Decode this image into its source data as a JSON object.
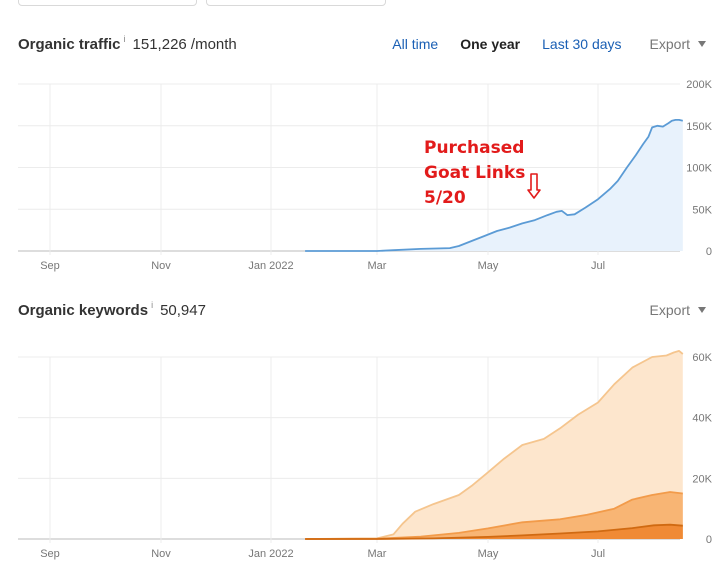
{
  "traffic": {
    "title": "Organic traffic",
    "info": "i",
    "value": "151,226 /month",
    "tabs": [
      {
        "label": "All time",
        "active": false
      },
      {
        "label": "One year",
        "active": true
      },
      {
        "label": "Last 30 days",
        "active": false
      }
    ],
    "export_label": "Export",
    "annotation": [
      "Purchased",
      "Goat Links",
      "5/20"
    ]
  },
  "keywords": {
    "title": "Organic keywords",
    "info": "i",
    "value": "50,947",
    "export_label": "Export"
  },
  "chart_data": [
    {
      "type": "area",
      "x_ticks": [
        "Sep",
        "Nov",
        "Jan 2022",
        "Mar",
        "May",
        "Jul"
      ],
      "y_ticks": [
        "200K",
        "150K",
        "100K",
        "50K",
        "0"
      ],
      "ylim": [
        0,
        200000
      ],
      "x_range": [
        "2021-08-15",
        "2022-08-12"
      ],
      "grid": true,
      "series": [
        {
          "color": "#5b9bd5",
          "fill": "#e8f2fc",
          "points": [
            [
              "2022-01-20",
              0
            ],
            [
              "2022-02-15",
              0
            ],
            [
              "2022-03-01",
              0
            ],
            [
              "2022-03-10",
              1000
            ],
            [
              "2022-03-25",
              2500
            ],
            [
              "2022-04-10",
              3500
            ],
            [
              "2022-04-15",
              6000
            ],
            [
              "2022-04-22",
              12000
            ],
            [
              "2022-04-29",
              18000
            ],
            [
              "2022-05-06",
              24000
            ],
            [
              "2022-05-13",
              28000
            ],
            [
              "2022-05-20",
              33000
            ],
            [
              "2022-05-27",
              37000
            ],
            [
              "2022-06-03",
              43000
            ],
            [
              "2022-06-08",
              47000
            ],
            [
              "2022-06-11",
              48000
            ],
            [
              "2022-06-14",
              43000
            ],
            [
              "2022-06-18",
              44000
            ],
            [
              "2022-06-24",
              52000
            ],
            [
              "2022-07-01",
              62000
            ],
            [
              "2022-07-08",
              75000
            ],
            [
              "2022-07-12",
              84000
            ],
            [
              "2022-07-17",
              100000
            ],
            [
              "2022-07-22",
              115000
            ],
            [
              "2022-07-26",
              128000
            ],
            [
              "2022-07-29",
              137000
            ],
            [
              "2022-07-31",
              148000
            ],
            [
              "2022-08-03",
              150000
            ],
            [
              "2022-08-06",
              149000
            ],
            [
              "2022-08-09",
              153000
            ],
            [
              "2022-08-11",
              156000
            ],
            [
              "2022-08-13",
              157000
            ],
            [
              "2022-08-15",
              157000
            ],
            [
              "2022-08-17",
              156000
            ]
          ]
        }
      ]
    },
    {
      "type": "area",
      "x_ticks": [
        "Sep",
        "Nov",
        "Jan 2022",
        "Mar",
        "May",
        "Jul"
      ],
      "y_ticks": [
        "60K",
        "40K",
        "20K",
        "0"
      ],
      "ylim": [
        0,
        60000
      ],
      "x_range": [
        "2021-08-15",
        "2022-08-12"
      ],
      "grid": true,
      "series": [
        {
          "color": "#f5c58e",
          "fill": "#fde6cd",
          "points": [
            [
              "2022-01-20",
              0
            ],
            [
              "2022-03-01",
              200
            ],
            [
              "2022-03-10",
              1500
            ],
            [
              "2022-03-15",
              5000
            ],
            [
              "2022-03-22",
              9000
            ],
            [
              "2022-04-01",
              11500
            ],
            [
              "2022-04-15",
              14500
            ],
            [
              "2022-04-22",
              17500
            ],
            [
              "2022-05-01",
              22000
            ],
            [
              "2022-05-10",
              26500
            ],
            [
              "2022-05-20",
              31000
            ],
            [
              "2022-06-01",
              33000
            ],
            [
              "2022-06-10",
              36500
            ],
            [
              "2022-06-20",
              41000
            ],
            [
              "2022-07-01",
              45000
            ],
            [
              "2022-07-10",
              51000
            ],
            [
              "2022-07-20",
              56500
            ],
            [
              "2022-07-31",
              60000
            ],
            [
              "2022-08-08",
              60500
            ],
            [
              "2022-08-12",
              61500
            ],
            [
              "2022-08-15",
              62000
            ],
            [
              "2022-08-17",
              61000
            ]
          ]
        },
        {
          "color": "#f29b4a",
          "fill": "#f8b574",
          "points": [
            [
              "2022-01-20",
              0
            ],
            [
              "2022-03-01",
              100
            ],
            [
              "2022-03-25",
              800
            ],
            [
              "2022-04-15",
              2000
            ],
            [
              "2022-05-01",
              3500
            ],
            [
              "2022-05-20",
              5500
            ],
            [
              "2022-06-10",
              6500
            ],
            [
              "2022-06-25",
              8000
            ],
            [
              "2022-07-10",
              10000
            ],
            [
              "2022-07-20",
              13000
            ],
            [
              "2022-07-31",
              14500
            ],
            [
              "2022-08-10",
              15500
            ],
            [
              "2022-08-17",
              15000
            ]
          ]
        },
        {
          "color": "#d06a12",
          "fill": "#f08a35",
          "points": [
            [
              "2022-01-20",
              0
            ],
            [
              "2022-03-01",
              0
            ],
            [
              "2022-04-01",
              200
            ],
            [
              "2022-05-01",
              700
            ],
            [
              "2022-05-20",
              1200
            ],
            [
              "2022-06-10",
              1800
            ],
            [
              "2022-07-01",
              2500
            ],
            [
              "2022-07-20",
              3600
            ],
            [
              "2022-08-01",
              4500
            ],
            [
              "2022-08-10",
              4700
            ],
            [
              "2022-08-17",
              4400
            ]
          ]
        }
      ]
    }
  ]
}
